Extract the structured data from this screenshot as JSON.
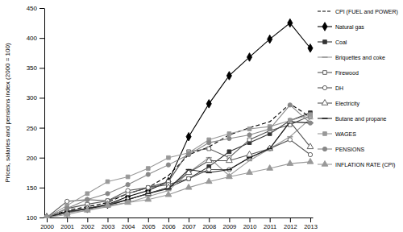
{
  "chart_data": {
    "type": "line",
    "y_label": "Prices, salaries and pensions index (2000 = 100)",
    "categories": [
      "2000",
      "2001",
      "2002",
      "2003",
      "2004",
      "2005",
      "2006",
      "2007",
      "2008",
      "2009",
      "2010",
      "2011",
      "2012",
      "2013"
    ],
    "ylim": [
      100,
      450
    ],
    "yticks": [
      100,
      150,
      200,
      250,
      300,
      350,
      400,
      450
    ],
    "grid": false,
    "legend": "right",
    "series": [
      {
        "name": "CPI (FUEL and POWER)",
        "color": "#000000",
        "marker": "none",
        "line_style": "dashed",
        "values": [
          100,
          112,
          118,
          125,
          140,
          150,
          170,
          205,
          218,
          238,
          250,
          260,
          290,
          268
        ]
      },
      {
        "name": "Natural gas",
        "color": "#000000",
        "marker": "diamond",
        "line_style": "solid",
        "values": [
          100,
          108,
          115,
          122,
          135,
          145,
          160,
          235,
          290,
          337,
          368,
          398,
          425,
          383
        ]
      },
      {
        "name": "Coal",
        "color": "#333333",
        "marker": "square",
        "line_style": "solid",
        "values": [
          100,
          110,
          115,
          120,
          130,
          140,
          150,
          165,
          185,
          210,
          225,
          240,
          262,
          275
        ]
      },
      {
        "name": "Briquettes and coke",
        "color": "#999999",
        "marker": "dash",
        "line_style": "solid",
        "values": [
          100,
          108,
          112,
          118,
          125,
          135,
          145,
          175,
          200,
          170,
          195,
          215,
          235,
          265
        ]
      },
      {
        "name": "Firewood",
        "color": "#555555",
        "marker": "square-open",
        "line_style": "solid",
        "values": [
          100,
          115,
          122,
          128,
          140,
          150,
          160,
          210,
          215,
          200,
          230,
          245,
          255,
          270
        ]
      },
      {
        "name": "DH",
        "color": "#555555",
        "marker": "circle-open",
        "line_style": "solid",
        "values": [
          100,
          127,
          130,
          128,
          145,
          150,
          155,
          165,
          180,
          180,
          200,
          215,
          230,
          205
        ]
      },
      {
        "name": "Electricity",
        "color": "#555555",
        "marker": "triangle-open",
        "line_style": "solid",
        "values": [
          100,
          108,
          115,
          122,
          130,
          140,
          150,
          175,
          195,
          195,
          205,
          215,
          260,
          218
        ]
      },
      {
        "name": "Butane and propane",
        "color": "#222222",
        "marker": "dash",
        "line_style": "solid",
        "values": [
          100,
          110,
          115,
          120,
          130,
          140,
          148,
          180,
          175,
          180,
          200,
          215,
          260,
          258
        ]
      },
      {
        "name": "WAGES",
        "color": "#999999",
        "marker": "square",
        "line_style": "solid",
        "values": [
          100,
          120,
          140,
          160,
          168,
          182,
          200,
          208,
          230,
          240,
          248,
          252,
          262,
          272
        ]
      },
      {
        "name": "PENSIONS",
        "color": "#888888",
        "marker": "circle",
        "line_style": "solid",
        "values": [
          100,
          115,
          130,
          140,
          155,
          172,
          188,
          205,
          225,
          232,
          238,
          248,
          288,
          258
        ]
      },
      {
        "name": "INFLATION RATE (CPI)",
        "color": "#999999",
        "marker": "triangle",
        "line_style": "solid",
        "values": [
          100,
          105,
          112,
          120,
          125,
          130,
          138,
          150,
          160,
          168,
          175,
          182,
          190,
          193
        ]
      }
    ]
  }
}
